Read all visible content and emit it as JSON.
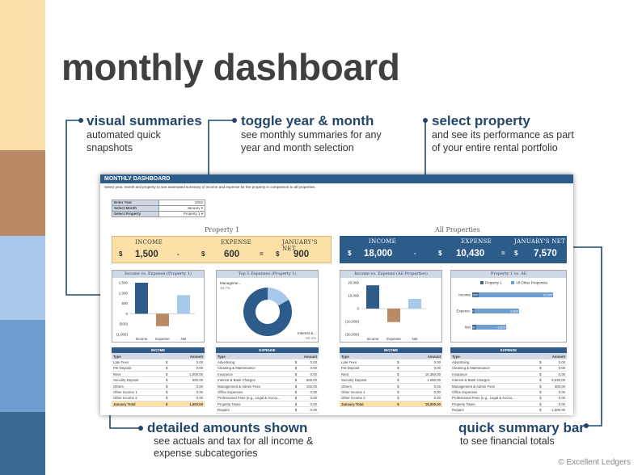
{
  "page": {
    "title": "monthly dashboard",
    "credit": "© Excellent Ledgers"
  },
  "callouts": {
    "visual": {
      "heading": "visual summaries",
      "line1": "automated quick",
      "line2": "snapshots"
    },
    "toggle": {
      "heading": "toggle year & month",
      "line1": "see monthly summaries for any",
      "line2": "year and month selection"
    },
    "property": {
      "heading": "select property",
      "line1": "and see its performance as part",
      "line2": "of your entire rental portfolio"
    },
    "detailed": {
      "heading": "detailed amounts shown",
      "line1": "see actuals and tax for all income &",
      "line2": "expense subcategories"
    },
    "summary": {
      "heading": "quick summary bar",
      "line1": "to see financial totals"
    }
  },
  "sheet": {
    "header": "MONTHLY DASHBOARD",
    "subtitle": "Select year, month and property to see automated summary of income and expense for the property in comparison to all properties.",
    "selectors": {
      "year_label": "Enter Year",
      "year_value": "2022",
      "month_label": "Select Month",
      "month_value": "January",
      "property_label": "Select Property",
      "property_value": "Property 1"
    },
    "left": {
      "title": "Property 1",
      "income_label": "INCOME",
      "expense_label": "EXPENSE",
      "net_label": "JANUARY'S NET",
      "currency": "$",
      "minus": "-",
      "equals": "=",
      "income": "1,500",
      "expense": "600",
      "net": "900",
      "chart1_title": "Income vs. Expense (Property 1)",
      "chart2_title": "Top 5 Expenses (Property 1)",
      "chart2_label_a": "Manageme...",
      "chart2_label_a_val": "16.7%",
      "chart2_label_b": "Interest &...",
      "chart2_label_b_val": "83.3%"
    },
    "right": {
      "title": "All Properties",
      "income_label": "INCOME",
      "expense_label": "EXPENSE",
      "net_label": "JANUARY'S NET",
      "currency": "$",
      "minus": "-",
      "equals": "=",
      "income": "18,000",
      "expense": "10,430",
      "net": "7,570",
      "chart1_title": "Income vs. Expense (All Properties)",
      "chart2_title": "Property 1 vs. All",
      "legend_a": "Property 1",
      "legend_b": "All Other Properties"
    },
    "tables": {
      "income_header": "INCOME",
      "expense_header": "EXPENSE",
      "col_type": "Type",
      "col_amount": "Amount",
      "total_label": "January Total",
      "left_income": [
        {
          "type": "Late Fees",
          "cur": "$",
          "amt": "0.00"
        },
        {
          "type": "Pet Deposit",
          "cur": "$",
          "amt": "0.00"
        },
        {
          "type": "Rent",
          "cur": "$",
          "amt": "1,000.00"
        },
        {
          "type": "Security Deposit",
          "cur": "$",
          "amt": "500.00"
        },
        {
          "type": "Others",
          "cur": "$",
          "amt": "0.00"
        },
        {
          "type": "Other Income 1",
          "cur": "$",
          "amt": "0.00"
        },
        {
          "type": "Other Income 2",
          "cur": "$",
          "amt": "0.00"
        }
      ],
      "left_income_total": "1,500.00",
      "left_expense": [
        {
          "type": "Advertising",
          "cur": "$",
          "amt": "0.00"
        },
        {
          "type": "Cleaning & Maintenance",
          "cur": "$",
          "amt": "0.00"
        },
        {
          "type": "Insurance",
          "cur": "$",
          "amt": "0.00"
        },
        {
          "type": "Interest & Bank Charges",
          "cur": "$",
          "amt": "500.00"
        },
        {
          "type": "Management & Admin Fees",
          "cur": "$",
          "amt": "100.00"
        },
        {
          "type": "Office Expenses",
          "cur": "$",
          "amt": "0.00"
        },
        {
          "type": "Professional Fees (e.g., Legal & Accou...",
          "cur": "$",
          "amt": "0.00"
        },
        {
          "type": "Property Taxes",
          "cur": "$",
          "amt": "0.00"
        },
        {
          "type": "Repairs",
          "cur": "$",
          "amt": "0.00"
        }
      ],
      "right_income": [
        {
          "type": "Late Fees",
          "cur": "$",
          "amt": "0.00"
        },
        {
          "type": "Pet Deposit",
          "cur": "$",
          "amt": "0.00"
        },
        {
          "type": "Rent",
          "cur": "$",
          "amt": "16,350.00"
        },
        {
          "type": "Security Deposit",
          "cur": "$",
          "amt": "1,650.00"
        },
        {
          "type": "Others",
          "cur": "$",
          "amt": "0.00"
        },
        {
          "type": "Other Income 1",
          "cur": "$",
          "amt": "0.00"
        },
        {
          "type": "Other Income 2",
          "cur": "$",
          "amt": "0.00"
        }
      ],
      "right_income_total": "18,000.00",
      "right_expense": [
        {
          "type": "Advertising",
          "cur": "$",
          "amt": "0.00"
        },
        {
          "type": "Cleaning & Maintenance",
          "cur": "$",
          "amt": "0.00"
        },
        {
          "type": "Insurance",
          "cur": "$",
          "amt": "0.00"
        },
        {
          "type": "Interest & Bank Charges",
          "cur": "$",
          "amt": "8,630.00"
        },
        {
          "type": "Management & Admin Fees",
          "cur": "$",
          "amt": "300.00"
        },
        {
          "type": "Office Expenses",
          "cur": "$",
          "amt": "0.00"
        },
        {
          "type": "Professional Fees (e.g., Legal & Accou...",
          "cur": "$",
          "amt": "0.00"
        },
        {
          "type": "Property Taxes",
          "cur": "$",
          "amt": "0.00"
        },
        {
          "type": "Repairs",
          "cur": "$",
          "amt": "1,500.00"
        }
      ]
    }
  },
  "chart_data": [
    {
      "type": "bar",
      "title": "Income vs. Expense (Property 1)",
      "categories": [
        "Income",
        "Expense",
        "Net"
      ],
      "values": [
        1500,
        -600,
        900
      ],
      "ylim": [
        -1000,
        1500
      ],
      "ticks": [
        "1,500",
        "1,000",
        "500",
        "0",
        "(500)",
        "(1,000)"
      ],
      "colors": [
        "#2e5c8a",
        "#b98a66",
        "#a9c9ea"
      ]
    },
    {
      "type": "pie",
      "title": "Top 5 Expenses (Property 1)",
      "labels": [
        "Management & Admin Fees",
        "Interest & Bank Charges"
      ],
      "values": [
        16.7,
        83.3
      ],
      "colors": [
        "#a9c9ea",
        "#2e5c8a"
      ]
    },
    {
      "type": "bar",
      "title": "Income vs. Expense (All Properties)",
      "categories": [
        "Income",
        "Expense",
        "Net"
      ],
      "values": [
        18000,
        -10430,
        7570
      ],
      "ylim": [
        -20000,
        20000
      ],
      "ticks": [
        "20,000",
        "10,000",
        "0",
        "(10,000)",
        "(20,000)"
      ],
      "colors": [
        "#2e5c8a",
        "#b98a66",
        "#a9c9ea"
      ]
    },
    {
      "type": "bar",
      "title": "Property 1 vs. All",
      "categories": [
        "Income",
        "Expense",
        "Net"
      ],
      "series": [
        {
          "name": "Property 1",
          "values": [
            1500,
            600,
            900
          ],
          "labels": [
            "1,500",
            "600",
            "900"
          ]
        },
        {
          "name": "All Other Properties",
          "values": [
            16500,
            9830,
            6670
          ],
          "labels": [
            "16,500",
            "9,830",
            "6,670"
          ]
        }
      ],
      "colors": [
        "#3d6a95",
        "#6f9fd0"
      ]
    }
  ]
}
